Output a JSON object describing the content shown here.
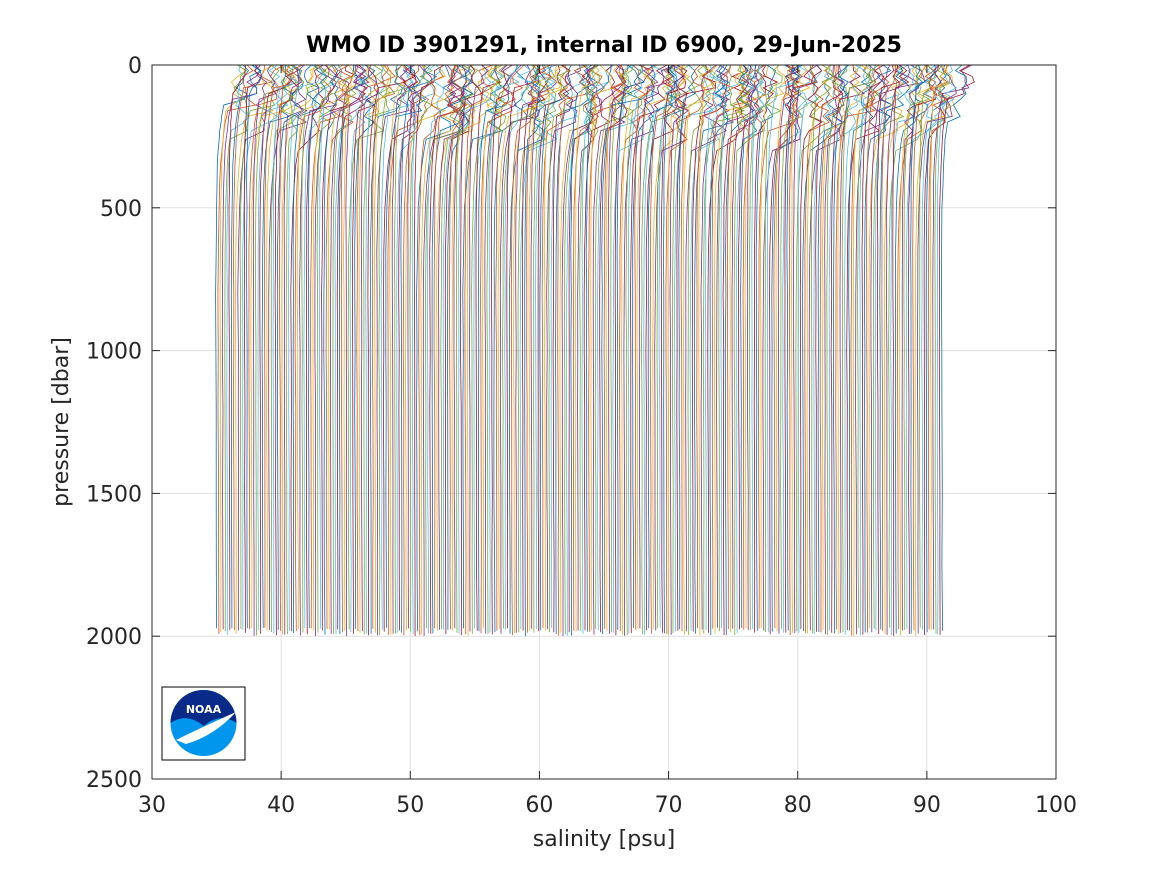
{
  "chart_data": {
    "type": "line",
    "title": "WMO ID 3901291, internal ID 6900, 29-Jun-2025",
    "xlabel": "salinity [psu]",
    "ylabel": "pressure [dbar]",
    "xlim": [
      30,
      100
    ],
    "ylim": [
      0,
      2500
    ],
    "y_reversed": true,
    "xticks": [
      30,
      40,
      50,
      60,
      70,
      80,
      90,
      100
    ],
    "yticks": [
      0,
      500,
      1000,
      1500,
      2000,
      2500
    ],
    "grid": true,
    "legend": "none",
    "profiles": {
      "count": 330,
      "offset_per_profile_psu": 0.17,
      "first_deep_salinity": 34.9,
      "last_deep_salinity": 91.1,
      "max_pressure": 2000,
      "color_cycle": [
        "#0072BD",
        "#D95319",
        "#EDB120",
        "#7E2F8E",
        "#77AC30",
        "#4DBEEE",
        "#A2142F"
      ]
    },
    "logo": {
      "name": "noaa-logo",
      "text": "NOAA",
      "colors": {
        "top": "#0a2a8a",
        "bottom": "#0096ee"
      }
    }
  }
}
